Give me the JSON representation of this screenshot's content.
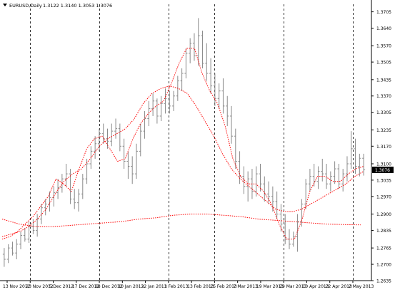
{
  "header": {
    "symbol": "EURUSD,Daily",
    "ohlc_text": "1.3122 1.3140 1.3053 1.3076",
    "arrow_icon": "triangle-down-icon"
  },
  "colors": {
    "background": "#ffffff",
    "bar": "#8a8a8a",
    "ma": "#ff0000",
    "grid": "#000000",
    "price_marker": "#000000"
  },
  "chart_data": {
    "type": "ohlc_bars",
    "title": "EURUSD,Daily",
    "y_range": [
      1.2635,
      1.3735
    ],
    "y_ticks": [
      "1.3705",
      "1.3640",
      "1.3570",
      "1.3505",
      "1.3435",
      "1.3370",
      "1.3305",
      "1.3235",
      "1.3170",
      "1.3100",
      "1.3035",
      "1.2970",
      "1.2900",
      "1.2835",
      "1.2765",
      "1.2700",
      "1.2635"
    ],
    "x_ticks": [
      {
        "label": "13 Nov 2012",
        "date": "2012-11-13"
      },
      {
        "label": "23 Nov 2012",
        "date": "2012-11-23"
      },
      {
        "label": "5 Dec 2012",
        "date": "2012-12-05"
      },
      {
        "label": "17 Dec 2012",
        "date": "2012-12-17"
      },
      {
        "label": "28 Dec 2012",
        "date": "2012-12-28"
      },
      {
        "label": "10 Jan 2013",
        "date": "2013-01-10"
      },
      {
        "label": "22 Jan 2013",
        "date": "2013-01-22"
      },
      {
        "label": "1 Feb 2013",
        "date": "2013-02-01"
      },
      {
        "label": "13 Feb 2013",
        "date": "2013-02-13"
      },
      {
        "label": "25 Feb 2013",
        "date": "2013-02-25"
      },
      {
        "label": "7 Mar 2013",
        "date": "2013-03-07"
      },
      {
        "label": "19 Mar 2013",
        "date": "2013-03-19"
      },
      {
        "label": "29 Mar 2013",
        "date": "2013-03-29"
      },
      {
        "label": "10 Apr 2013",
        "date": "2013-04-10"
      },
      {
        "label": "22 Apr 2013",
        "date": "2013-04-22"
      },
      {
        "label": "2 May 2013",
        "date": "2013-05-02"
      }
    ],
    "period_separators": [
      "2012-11-23",
      "2012-12-28",
      "2013-02-01",
      "2013-02-25",
      "2013-03-29",
      "2013-05-02"
    ],
    "current_price": "1.3076",
    "ohlc": [
      [
        1.274,
        1.2765,
        1.269,
        1.272
      ],
      [
        1.272,
        1.278,
        1.2705,
        1.2765
      ],
      [
        1.2765,
        1.279,
        1.2735,
        1.2745
      ],
      [
        1.2745,
        1.28,
        1.272,
        1.278
      ],
      [
        1.278,
        1.283,
        1.276,
        1.2815
      ],
      [
        1.2815,
        1.2845,
        1.279,
        1.28
      ],
      [
        1.28,
        1.287,
        1.2785,
        1.285
      ],
      [
        1.285,
        1.288,
        1.282,
        1.2835
      ],
      [
        1.2835,
        1.29,
        1.281,
        1.288
      ],
      [
        1.288,
        1.294,
        1.286,
        1.2925
      ],
      [
        1.2925,
        1.296,
        1.2895,
        1.294
      ],
      [
        1.294,
        1.299,
        1.291,
        1.2965
      ],
      [
        1.2965,
        1.301,
        1.293,
        1.2985
      ],
      [
        1.2985,
        1.304,
        1.296,
        1.3005
      ],
      [
        1.3005,
        1.306,
        1.2985,
        1.304
      ],
      [
        1.304,
        1.31,
        1.301,
        1.306
      ],
      [
        1.306,
        1.308,
        1.294,
        1.296
      ],
      [
        1.296,
        1.3,
        1.292,
        1.2945
      ],
      [
        1.2945,
        1.3,
        1.291,
        1.298
      ],
      [
        1.298,
        1.306,
        1.296,
        1.304
      ],
      [
        1.304,
        1.312,
        1.302,
        1.31
      ],
      [
        1.31,
        1.317,
        1.308,
        1.315
      ],
      [
        1.315,
        1.321,
        1.312,
        1.318
      ],
      [
        1.318,
        1.324,
        1.315,
        1.322
      ],
      [
        1.322,
        1.326,
        1.318,
        1.32
      ],
      [
        1.32,
        1.324,
        1.316,
        1.319
      ],
      [
        1.319,
        1.326,
        1.317,
        1.323
      ],
      [
        1.323,
        1.328,
        1.32,
        1.324
      ],
      [
        1.324,
        1.326,
        1.315,
        1.317
      ],
      [
        1.317,
        1.32,
        1.308,
        1.311
      ],
      [
        1.311,
        1.315,
        1.304,
        1.309
      ],
      [
        1.309,
        1.313,
        1.302,
        1.306
      ],
      [
        1.306,
        1.318,
        1.304,
        1.315
      ],
      [
        1.315,
        1.326,
        1.313,
        1.323
      ],
      [
        1.323,
        1.331,
        1.32,
        1.328
      ],
      [
        1.328,
        1.335,
        1.325,
        1.332
      ],
      [
        1.332,
        1.338,
        1.329,
        1.335
      ],
      [
        1.335,
        1.336,
        1.326,
        1.329
      ],
      [
        1.329,
        1.337,
        1.327,
        1.334
      ],
      [
        1.334,
        1.34,
        1.33,
        1.336
      ],
      [
        1.336,
        1.339,
        1.33,
        1.333
      ],
      [
        1.333,
        1.339,
        1.331,
        1.337
      ],
      [
        1.337,
        1.345,
        1.335,
        1.343
      ],
      [
        1.343,
        1.348,
        1.339,
        1.346
      ],
      [
        1.346,
        1.356,
        1.344,
        1.354
      ],
      [
        1.354,
        1.36,
        1.35,
        1.358
      ],
      [
        1.358,
        1.362,
        1.351,
        1.353
      ],
      [
        1.353,
        1.368,
        1.349,
        1.361
      ],
      [
        1.361,
        1.363,
        1.348,
        1.35
      ],
      [
        1.35,
        1.358,
        1.343,
        1.346
      ],
      [
        1.346,
        1.352,
        1.338,
        1.341
      ],
      [
        1.341,
        1.346,
        1.333,
        1.336
      ],
      [
        1.336,
        1.342,
        1.332,
        1.339
      ],
      [
        1.339,
        1.344,
        1.33,
        1.333
      ],
      [
        1.333,
        1.337,
        1.325,
        1.329
      ],
      [
        1.329,
        1.333,
        1.318,
        1.321
      ],
      [
        1.321,
        1.324,
        1.308,
        1.311
      ],
      [
        1.311,
        1.315,
        1.302,
        1.305
      ],
      [
        1.305,
        1.309,
        1.298,
        1.301
      ],
      [
        1.301,
        1.307,
        1.295,
        1.304
      ],
      [
        1.304,
        1.308,
        1.296,
        1.299
      ],
      [
        1.299,
        1.309,
        1.297,
        1.306
      ],
      [
        1.306,
        1.31,
        1.299,
        1.302
      ],
      [
        1.302,
        1.305,
        1.295,
        1.298
      ],
      [
        1.298,
        1.303,
        1.294,
        1.297
      ],
      [
        1.297,
        1.301,
        1.291,
        1.295
      ],
      [
        1.295,
        1.299,
        1.288,
        1.29
      ],
      [
        1.29,
        1.294,
        1.283,
        1.286
      ],
      [
        1.286,
        1.29,
        1.278,
        1.28
      ],
      [
        1.28,
        1.284,
        1.276,
        1.278
      ],
      [
        1.278,
        1.283,
        1.277,
        1.281
      ],
      [
        1.281,
        1.29,
        1.275,
        1.287
      ],
      [
        1.287,
        1.296,
        1.285,
        1.294
      ],
      [
        1.294,
        1.304,
        1.292,
        1.302
      ],
      [
        1.302,
        1.308,
        1.299,
        1.305
      ],
      [
        1.305,
        1.31,
        1.301,
        1.303
      ],
      [
        1.303,
        1.309,
        1.3,
        1.307
      ],
      [
        1.307,
        1.312,
        1.303,
        1.306
      ],
      [
        1.306,
        1.31,
        1.3,
        1.302
      ],
      [
        1.302,
        1.307,
        1.299,
        1.305
      ],
      [
        1.305,
        1.311,
        1.302,
        1.308
      ],
      [
        1.308,
        1.31,
        1.3,
        1.302
      ],
      [
        1.302,
        1.308,
        1.299,
        1.306
      ],
      [
        1.306,
        1.313,
        1.303,
        1.31
      ],
      [
        1.31,
        1.323,
        1.308,
        1.316
      ],
      [
        1.316,
        1.32,
        1.306,
        1.309
      ],
      [
        1.309,
        1.314,
        1.305,
        1.3122
      ],
      [
        1.3122,
        1.314,
        1.3053,
        1.3076
      ]
    ],
    "moving_averages": [
      {
        "period": "short",
        "values": [
          1.28,
          1.281,
          1.283,
          1.286,
          1.289,
          1.293,
          1.297,
          1.304,
          1.302,
          1.299,
          1.308,
          1.316,
          1.32,
          1.321,
          1.316,
          1.311,
          1.312,
          1.32,
          1.326,
          1.33,
          1.333,
          1.335,
          1.342,
          1.35,
          1.356,
          1.356,
          1.346,
          1.339,
          1.334,
          1.325,
          1.312,
          1.305,
          1.302,
          1.302,
          1.299,
          1.294,
          1.286,
          1.28,
          1.28,
          1.288,
          1.299,
          1.305,
          1.305,
          1.303,
          1.303,
          1.306,
          1.308,
          1.309
        ]
      },
      {
        "period": "medium",
        "values": [
          1.281,
          1.282,
          1.283,
          1.285,
          1.288,
          1.292,
          1.298,
          1.303,
          1.306,
          1.308,
          1.312,
          1.317,
          1.32,
          1.322,
          1.324,
          1.328,
          1.334,
          1.338,
          1.34,
          1.341,
          1.34,
          1.338,
          1.333,
          1.327,
          1.321,
          1.314,
          1.308,
          1.304,
          1.301,
          1.298,
          1.295,
          1.292,
          1.291,
          1.291,
          1.292,
          1.294,
          1.296,
          1.298,
          1.3,
          1.302,
          1.305,
          1.307
        ]
      },
      {
        "period": "long",
        "values": [
          1.288,
          1.286,
          1.285,
          1.285,
          1.2855,
          1.286,
          1.2865,
          1.287,
          1.288,
          1.2885,
          1.2895,
          1.29,
          1.29,
          1.2895,
          1.289,
          1.288,
          1.2875,
          1.287,
          1.2865,
          1.286,
          1.2858,
          1.2857
        ]
      }
    ]
  }
}
